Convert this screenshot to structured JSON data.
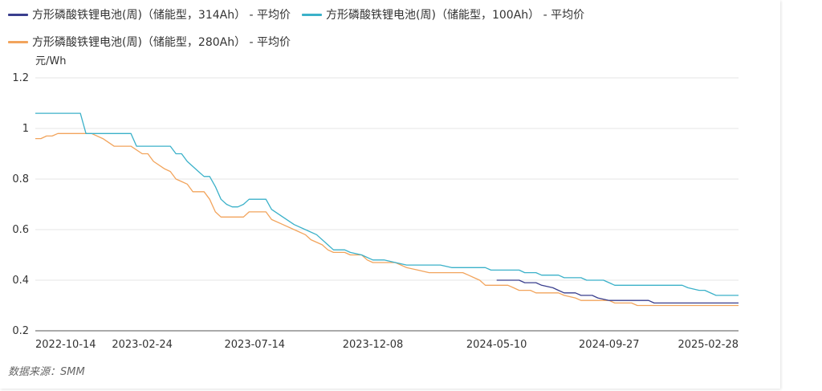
{
  "source_note": "数据来源：SMM",
  "colors": {
    "series_314": "#3a3f8e",
    "series_100": "#3bb1c9",
    "series_280": "#f2a45c",
    "grid": "#e6e6e6",
    "axis": "#555555"
  },
  "chart_data": {
    "type": "line",
    "title": "",
    "xlabel": "",
    "ylabel": "元/Wh",
    "ylim": [
      0.2,
      1.2
    ],
    "yticks": [
      "1.2",
      "1",
      "0.8",
      "0.6",
      "0.4",
      "0.2"
    ],
    "xticks": [
      "2022-10-14",
      "2023-02-24",
      "2023-07-14",
      "2023-12-08",
      "2024-05-10",
      "2024-09-27",
      "2025-02-28"
    ],
    "grid": true,
    "legend_position": "top-left",
    "x_domain": [
      "2022-10-14",
      "2025-03-07"
    ],
    "series": [
      {
        "name": "方形磷酸铁锂电池(周)（储能型，314Ah） - 平均价",
        "color": "#3a3f8e",
        "points": [
          [
            "2024-05-10",
            0.4
          ],
          [
            "2024-05-24",
            0.4
          ],
          [
            "2024-06-07",
            0.4
          ],
          [
            "2024-06-14",
            0.39
          ],
          [
            "2024-06-28",
            0.39
          ],
          [
            "2024-07-05",
            0.38
          ],
          [
            "2024-07-19",
            0.37
          ],
          [
            "2024-07-26",
            0.36
          ],
          [
            "2024-08-02",
            0.35
          ],
          [
            "2024-08-16",
            0.35
          ],
          [
            "2024-08-23",
            0.34
          ],
          [
            "2024-09-06",
            0.34
          ],
          [
            "2024-09-13",
            0.33
          ],
          [
            "2024-09-27",
            0.32
          ],
          [
            "2024-11-01",
            0.32
          ],
          [
            "2024-11-15",
            0.32
          ],
          [
            "2024-11-22",
            0.31
          ],
          [
            "2025-03-07",
            0.31
          ]
        ]
      },
      {
        "name": "方形磷酸铁锂电池(周)（储能型，100Ah） - 平均价",
        "color": "#3bb1c9",
        "points": [
          [
            "2022-10-14",
            1.06
          ],
          [
            "2022-12-09",
            1.06
          ],
          [
            "2022-12-16",
            0.98
          ],
          [
            "2023-02-10",
            0.98
          ],
          [
            "2023-02-17",
            0.93
          ],
          [
            "2023-03-31",
            0.93
          ],
          [
            "2023-04-07",
            0.9
          ],
          [
            "2023-04-14",
            0.9
          ],
          [
            "2023-04-21",
            0.87
          ],
          [
            "2023-05-05",
            0.83
          ],
          [
            "2023-05-12",
            0.81
          ],
          [
            "2023-05-19",
            0.81
          ],
          [
            "2023-05-26",
            0.77
          ],
          [
            "2023-06-02",
            0.72
          ],
          [
            "2023-06-09",
            0.7
          ],
          [
            "2023-06-16",
            0.69
          ],
          [
            "2023-06-23",
            0.69
          ],
          [
            "2023-06-30",
            0.7
          ],
          [
            "2023-07-07",
            0.72
          ],
          [
            "2023-07-28",
            0.72
          ],
          [
            "2023-08-04",
            0.68
          ],
          [
            "2023-08-18",
            0.65
          ],
          [
            "2023-09-01",
            0.62
          ],
          [
            "2023-09-15",
            0.6
          ],
          [
            "2023-09-29",
            0.58
          ],
          [
            "2023-10-13",
            0.54
          ],
          [
            "2023-10-20",
            0.52
          ],
          [
            "2023-11-03",
            0.52
          ],
          [
            "2023-11-10",
            0.51
          ],
          [
            "2023-11-24",
            0.5
          ],
          [
            "2023-12-08",
            0.48
          ],
          [
            "2023-12-22",
            0.48
          ],
          [
            "2024-01-05",
            0.47
          ],
          [
            "2024-01-19",
            0.46
          ],
          [
            "2024-03-01",
            0.46
          ],
          [
            "2024-03-15",
            0.45
          ],
          [
            "2024-04-26",
            0.45
          ],
          [
            "2024-05-03",
            0.44
          ],
          [
            "2024-06-07",
            0.44
          ],
          [
            "2024-06-14",
            0.43
          ],
          [
            "2024-06-28",
            0.43
          ],
          [
            "2024-07-05",
            0.42
          ],
          [
            "2024-07-26",
            0.42
          ],
          [
            "2024-08-02",
            0.41
          ],
          [
            "2024-08-23",
            0.41
          ],
          [
            "2024-08-30",
            0.4
          ],
          [
            "2024-09-20",
            0.4
          ],
          [
            "2024-09-27",
            0.39
          ],
          [
            "2024-10-04",
            0.38
          ],
          [
            "2024-12-27",
            0.38
          ],
          [
            "2025-01-03",
            0.37
          ],
          [
            "2025-01-17",
            0.36
          ],
          [
            "2025-01-24",
            0.36
          ],
          [
            "2025-02-07",
            0.34
          ],
          [
            "2025-03-07",
            0.34
          ]
        ]
      },
      {
        "name": "方形磷酸铁锂电池(周)（储能型，280Ah） - 平均价",
        "color": "#f2a45c",
        "points": [
          [
            "2022-10-14",
            0.96
          ],
          [
            "2022-10-21",
            0.96
          ],
          [
            "2022-10-28",
            0.97
          ],
          [
            "2022-11-04",
            0.97
          ],
          [
            "2022-11-11",
            0.98
          ],
          [
            "2022-12-23",
            0.98
          ],
          [
            "2023-01-06",
            0.96
          ],
          [
            "2023-01-20",
            0.93
          ],
          [
            "2023-02-10",
            0.93
          ],
          [
            "2023-02-24",
            0.9
          ],
          [
            "2023-03-03",
            0.9
          ],
          [
            "2023-03-10",
            0.87
          ],
          [
            "2023-03-24",
            0.84
          ],
          [
            "2023-03-31",
            0.83
          ],
          [
            "2023-04-07",
            0.8
          ],
          [
            "2023-04-14",
            0.79
          ],
          [
            "2023-04-21",
            0.78
          ],
          [
            "2023-04-28",
            0.75
          ],
          [
            "2023-05-12",
            0.75
          ],
          [
            "2023-05-19",
            0.72
          ],
          [
            "2023-05-26",
            0.67
          ],
          [
            "2023-06-02",
            0.65
          ],
          [
            "2023-06-30",
            0.65
          ],
          [
            "2023-07-07",
            0.67
          ],
          [
            "2023-07-28",
            0.67
          ],
          [
            "2023-08-04",
            0.64
          ],
          [
            "2023-08-18",
            0.62
          ],
          [
            "2023-09-01",
            0.6
          ],
          [
            "2023-09-15",
            0.58
          ],
          [
            "2023-09-22",
            0.56
          ],
          [
            "2023-10-06",
            0.54
          ],
          [
            "2023-10-13",
            0.52
          ],
          [
            "2023-10-20",
            0.51
          ],
          [
            "2023-11-03",
            0.51
          ],
          [
            "2023-11-10",
            0.5
          ],
          [
            "2023-11-24",
            0.5
          ],
          [
            "2023-12-01",
            0.48
          ],
          [
            "2023-12-08",
            0.47
          ],
          [
            "2024-01-05",
            0.47
          ],
          [
            "2024-01-12",
            0.46
          ],
          [
            "2024-01-19",
            0.45
          ],
          [
            "2024-02-02",
            0.44
          ],
          [
            "2024-02-16",
            0.43
          ],
          [
            "2024-03-29",
            0.43
          ],
          [
            "2024-04-05",
            0.42
          ],
          [
            "2024-04-12",
            0.41
          ],
          [
            "2024-04-19",
            0.4
          ],
          [
            "2024-04-26",
            0.38
          ],
          [
            "2024-05-24",
            0.38
          ],
          [
            "2024-05-31",
            0.37
          ],
          [
            "2024-06-07",
            0.36
          ],
          [
            "2024-06-21",
            0.36
          ],
          [
            "2024-06-28",
            0.35
          ],
          [
            "2024-07-26",
            0.35
          ],
          [
            "2024-08-02",
            0.34
          ],
          [
            "2024-08-16",
            0.33
          ],
          [
            "2024-08-23",
            0.32
          ],
          [
            "2024-09-27",
            0.32
          ],
          [
            "2024-10-04",
            0.31
          ],
          [
            "2024-10-25",
            0.31
          ],
          [
            "2024-11-01",
            0.3
          ],
          [
            "2025-03-07",
            0.3
          ]
        ]
      }
    ]
  }
}
